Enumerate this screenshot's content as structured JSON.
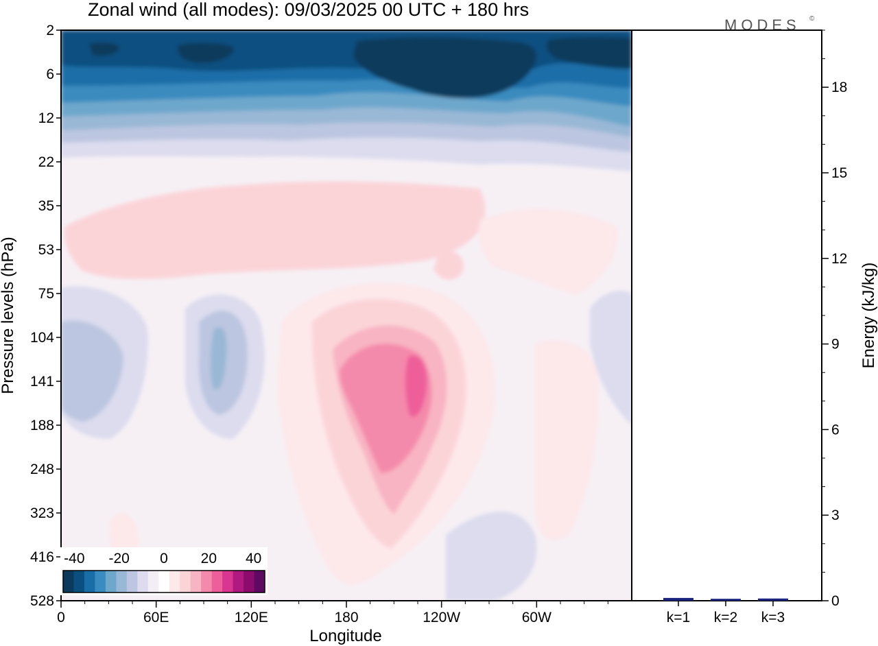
{
  "title": "Zonal wind (all modes):  09/03/2025  00 UTC  + 180 hrs",
  "logo": "MODES",
  "logo_mark": "©",
  "chart_data": [
    {
      "type": "heatmap",
      "variable": "Zonal wind",
      "x_label": "Longitude",
      "y_label": "Pressure levels (hPa)",
      "x_ticks": [
        "0",
        "60E",
        "120E",
        "180",
        "120W",
        "60W"
      ],
      "x_tick_values": [
        0,
        60,
        120,
        180,
        240,
        300
      ],
      "x_range": [
        0,
        360
      ],
      "y_ticks": [
        "2",
        "6",
        "12",
        "22",
        "35",
        "53",
        "75",
        "104",
        "141",
        "188",
        "248",
        "323",
        "416",
        "528"
      ],
      "colorbar": {
        "tick_labels": [
          "-40",
          "-20",
          "0",
          "20",
          "40"
        ],
        "levels": [
          -45,
          -40,
          -35,
          -30,
          -25,
          -20,
          -15,
          -10,
          -5,
          0,
          5,
          10,
          15,
          20,
          25,
          30,
          35,
          40,
          45
        ],
        "colors": [
          "#0a3a5c",
          "#0b4f80",
          "#1a6ea8",
          "#3a8bbf",
          "#6ea7cc",
          "#99b8d6",
          "#bcc6e0",
          "#dcdcee",
          "#f3eef6",
          "#ffffff",
          "#fde8ea",
          "#fbd4d8",
          "#f8b4c2",
          "#f48aab",
          "#ee5e9a",
          "#d83690",
          "#b01a80",
          "#8c0c6e",
          "#5e0a62"
        ]
      },
      "features": [
        {
          "kind": "easterly jet (negative)",
          "lon_range": [
            0,
            360
          ],
          "levels_hPa": [
            2,
            12
          ],
          "min_value": -45
        },
        {
          "kind": "westerly maximum (positive)",
          "lon_center": 205,
          "level_hPa": 141,
          "max_value": 25
        },
        {
          "kind": "weak westerlies",
          "lon_range": [
            0,
            260
          ],
          "levels_hPa": [
            35,
            60
          ],
          "approx_value": 5
        },
        {
          "kind": "weak easterlies",
          "lon_center": 95,
          "level_hPa": 120,
          "approx_value": -15
        }
      ]
    },
    {
      "type": "bar",
      "y_label": "Energy (kJ/kg)",
      "categories": [
        "k=1",
        "k=2",
        "k=3"
      ],
      "values": [
        0.05,
        0.02,
        0.03
      ],
      "y_ticks": [
        "0",
        "3",
        "6",
        "9",
        "12",
        "15",
        "18"
      ],
      "ylim": [
        0,
        20
      ],
      "bar_color": "#1a237e"
    }
  ]
}
